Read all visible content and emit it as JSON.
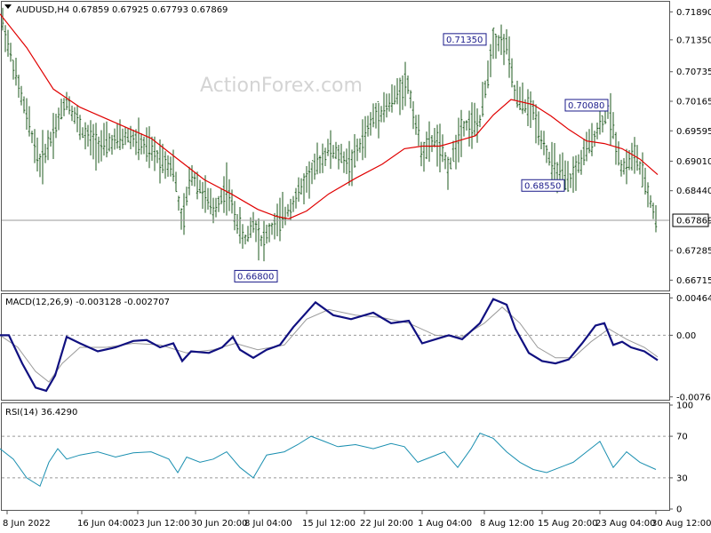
{
  "chart_data": [
    {
      "type": "line",
      "panel": "price",
      "header": "AUDUSD,H4  0.67859 0.67925 0.67793 0.67869",
      "watermark": "ActionForex.com",
      "ylim": [
        0.6655,
        0.7205
      ],
      "y_ticks": [
        0.7189,
        0.7135,
        0.70735,
        0.70165,
        0.69595,
        0.6901,
        0.6844,
        0.67869,
        0.67285,
        0.66715
      ],
      "y_tick_labels": [
        "0.71890",
        "0.71350",
        "0.70735",
        "0.70165",
        "0.69595",
        "0.69010",
        "0.68440",
        "0.67869",
        "0.67285",
        "0.66715"
      ],
      "current_price": 0.67869,
      "current_price_label": "0.67869",
      "grid": false,
      "series": [
        {
          "kind": "ohlc_path",
          "x": [
            0,
            20,
            45,
            75,
            95,
            115,
            145,
            170,
            195,
            205,
            215,
            240,
            255,
            262,
            275,
            285,
            295,
            310,
            320,
            345,
            370,
            395,
            420,
            440,
            458,
            475,
            490,
            505,
            520,
            540,
            555,
            570,
            580,
            600,
            620,
            640,
            655,
            670,
            685,
            700,
            715,
            730,
            738
          ],
          "y": [
            0.719,
            0.705,
            0.6895,
            0.702,
            0.695,
            0.693,
            0.695,
            0.692,
            0.689,
            0.6775,
            0.688,
            0.6805,
            0.685,
            0.681,
            0.6745,
            0.6785,
            0.6745,
            0.678,
            0.6795,
            0.6865,
            0.6925,
            0.6895,
            0.6985,
            0.7015,
            0.7055,
            0.6915,
            0.6945,
            0.6885,
            0.697,
            0.6975,
            0.7135,
            0.7125,
            0.7025,
            0.6995,
            0.6895,
            0.6858,
            0.6905,
            0.6955,
            0.7,
            0.6885,
            0.6915,
            0.6835,
            0.6787
          ]
        },
        {
          "kind": "moving_average",
          "x": [
            0,
            30,
            60,
            90,
            130,
            170,
            200,
            230,
            260,
            290,
            310,
            325,
            345,
            370,
            400,
            430,
            455,
            475,
            495,
            515,
            535,
            555,
            575,
            600,
            620,
            640,
            660,
            680,
            700,
            720,
            740
          ],
          "y": [
            0.7185,
            0.712,
            0.704,
            0.7005,
            0.6975,
            0.6945,
            0.6905,
            0.6865,
            0.6838,
            0.6808,
            0.6795,
            0.679,
            0.6805,
            0.6838,
            0.6868,
            0.6895,
            0.6925,
            0.693,
            0.693,
            0.694,
            0.695,
            0.699,
            0.702,
            0.701,
            0.6988,
            0.6962,
            0.694,
            0.6935,
            0.6925,
            0.6905,
            0.6875
          ]
        }
      ],
      "annotations": [
        {
          "label": "0.66800",
          "x": 312,
          "value": 0.668
        },
        {
          "label": "0.71350",
          "x": 547,
          "value": 0.7135
        },
        {
          "label": "0.68550",
          "x": 635,
          "value": 0.6855
        },
        {
          "label": "0.70080",
          "x": 684,
          "value": 0.7008
        }
      ]
    },
    {
      "type": "line",
      "panel": "macd",
      "header": "MACD(12,26,9) -0.003128 -0.002707",
      "ylim": [
        -0.0079,
        0.0049
      ],
      "y_tick_labels": [
        "0.004643",
        "0.00",
        "-0.007653"
      ],
      "y_ticks": [
        0.004643,
        0.0,
        -0.007653
      ],
      "zero_line": 0.0,
      "series": [
        {
          "kind": "macd",
          "x": [
            0,
            10,
            25,
            40,
            52,
            62,
            75,
            90,
            110,
            130,
            150,
            165,
            180,
            195,
            205,
            215,
            235,
            250,
            262,
            270,
            285,
            300,
            315,
            330,
            355,
            375,
            395,
            420,
            440,
            460,
            475,
            490,
            505,
            520,
            540,
            555,
            570,
            580,
            595,
            610,
            625,
            640,
            655,
            670,
            680,
            690,
            700,
            710,
            725,
            740
          ],
          "y": [
            0.0,
            0.0,
            -0.0035,
            -0.0065,
            -0.0069,
            -0.005,
            -0.0002,
            -0.001,
            -0.002,
            -0.0015,
            -0.0007,
            -0.0006,
            -0.0015,
            -0.001,
            -0.0032,
            -0.002,
            -0.0022,
            -0.0015,
            -0.0002,
            -0.0018,
            -0.0028,
            -0.0018,
            -0.0012,
            0.001,
            0.0041,
            0.0025,
            0.002,
            0.0028,
            0.0015,
            0.0018,
            -0.001,
            -0.0005,
            0.0,
            -0.0005,
            0.0015,
            0.0045,
            0.0038,
            0.0008,
            -0.0022,
            -0.0032,
            -0.0035,
            -0.003,
            -0.001,
            0.0012,
            0.0015,
            -0.0012,
            -0.0008,
            -0.0015,
            -0.002,
            -0.0031
          ]
        },
        {
          "kind": "signal",
          "x": [
            0,
            20,
            40,
            55,
            70,
            90,
            120,
            150,
            180,
            210,
            240,
            265,
            290,
            320,
            345,
            370,
            400,
            430,
            460,
            490,
            520,
            545,
            565,
            585,
            605,
            625,
            645,
            665,
            685,
            705,
            725,
            740
          ],
          "y": [
            0.0,
            -0.0015,
            -0.0045,
            -0.0058,
            -0.0035,
            -0.0015,
            -0.0015,
            -0.001,
            -0.0012,
            -0.0022,
            -0.0018,
            -0.001,
            -0.0018,
            -0.0012,
            0.002,
            0.0032,
            0.0025,
            0.0022,
            0.0015,
            0.0,
            -0.0002,
            0.0015,
            0.0035,
            0.0015,
            -0.0015,
            -0.0028,
            -0.0028,
            -0.0008,
            0.0008,
            -0.0005,
            -0.0015,
            -0.0027
          ]
        }
      ]
    },
    {
      "type": "line",
      "panel": "rsi",
      "header": "RSI(14) 36.4290",
      "ylim": [
        0,
        100
      ],
      "y_ticks": [
        100,
        70,
        30,
        0
      ],
      "y_tick_labels": [
        "100",
        "70",
        "30",
        "0"
      ],
      "levels": [
        70,
        30
      ],
      "x_ticks": [
        8,
        92,
        155,
        220,
        280,
        345,
        410,
        475,
        545,
        610,
        675,
        738
      ],
      "x_tick_labels": [
        "8 Jun 2022",
        "16 Jun 04:00",
        "23 Jun 12:00",
        "30 Jun 20:00",
        "8 Jul 04:00",
        "15 Jul 12:00",
        "22 Jul 20:00",
        "1 Aug 04:00",
        "8 Aug 12:00",
        "15 Aug 20:00",
        "23 Aug 04:00",
        "30 Aug 12:00"
      ],
      "series": [
        {
          "kind": "rsi",
          "x": [
            0,
            15,
            30,
            45,
            55,
            65,
            75,
            90,
            110,
            130,
            150,
            170,
            190,
            200,
            210,
            225,
            240,
            255,
            270,
            285,
            300,
            320,
            335,
            350,
            365,
            380,
            400,
            420,
            440,
            455,
            470,
            485,
            500,
            515,
            530,
            540,
            555,
            570,
            585,
            600,
            615,
            630,
            645,
            660,
            675,
            690,
            705,
            720,
            738
          ],
          "y": [
            58,
            48,
            30,
            22,
            45,
            58,
            48,
            52,
            55,
            50,
            54,
            55,
            48,
            35,
            50,
            45,
            48,
            55,
            40,
            30,
            52,
            55,
            62,
            70,
            65,
            60,
            62,
            58,
            63,
            60,
            45,
            50,
            55,
            40,
            58,
            73,
            68,
            55,
            45,
            38,
            35,
            40,
            45,
            55,
            65,
            40,
            55,
            45,
            38
          ]
        }
      ]
    }
  ]
}
